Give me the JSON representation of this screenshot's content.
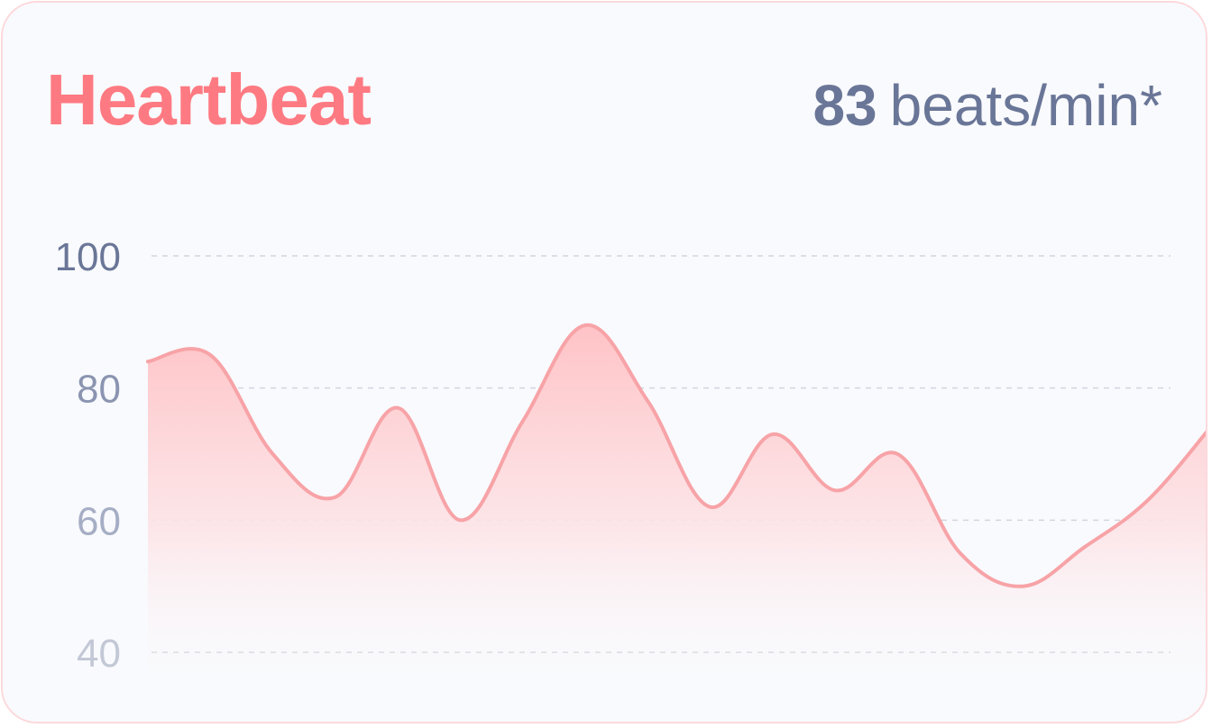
{
  "card": {
    "title": "Heartbeat",
    "reading_value": "83",
    "reading_unit": "beats/min*"
  },
  "colors": {
    "title": "#fe7a82",
    "reading": "#6a7697",
    "line": "#f7a3a7",
    "area_top": "#fec3c6",
    "grid": "#d2d5de"
  },
  "chart_data": {
    "type": "area",
    "title": "",
    "xlabel": "",
    "ylabel": "",
    "ylim": [
      40,
      100
    ],
    "y_ticks": [
      "100",
      "80",
      "60",
      "40"
    ],
    "grid": true,
    "x": [
      0,
      1,
      2,
      3,
      4,
      5,
      6,
      7,
      8,
      9,
      10,
      11,
      12,
      13,
      14,
      15,
      16,
      17
    ],
    "values": [
      84,
      85,
      70,
      63.5,
      77,
      60,
      75,
      89.5,
      78,
      62,
      73,
      64.5,
      70,
      55,
      50,
      56,
      63,
      74
    ]
  }
}
